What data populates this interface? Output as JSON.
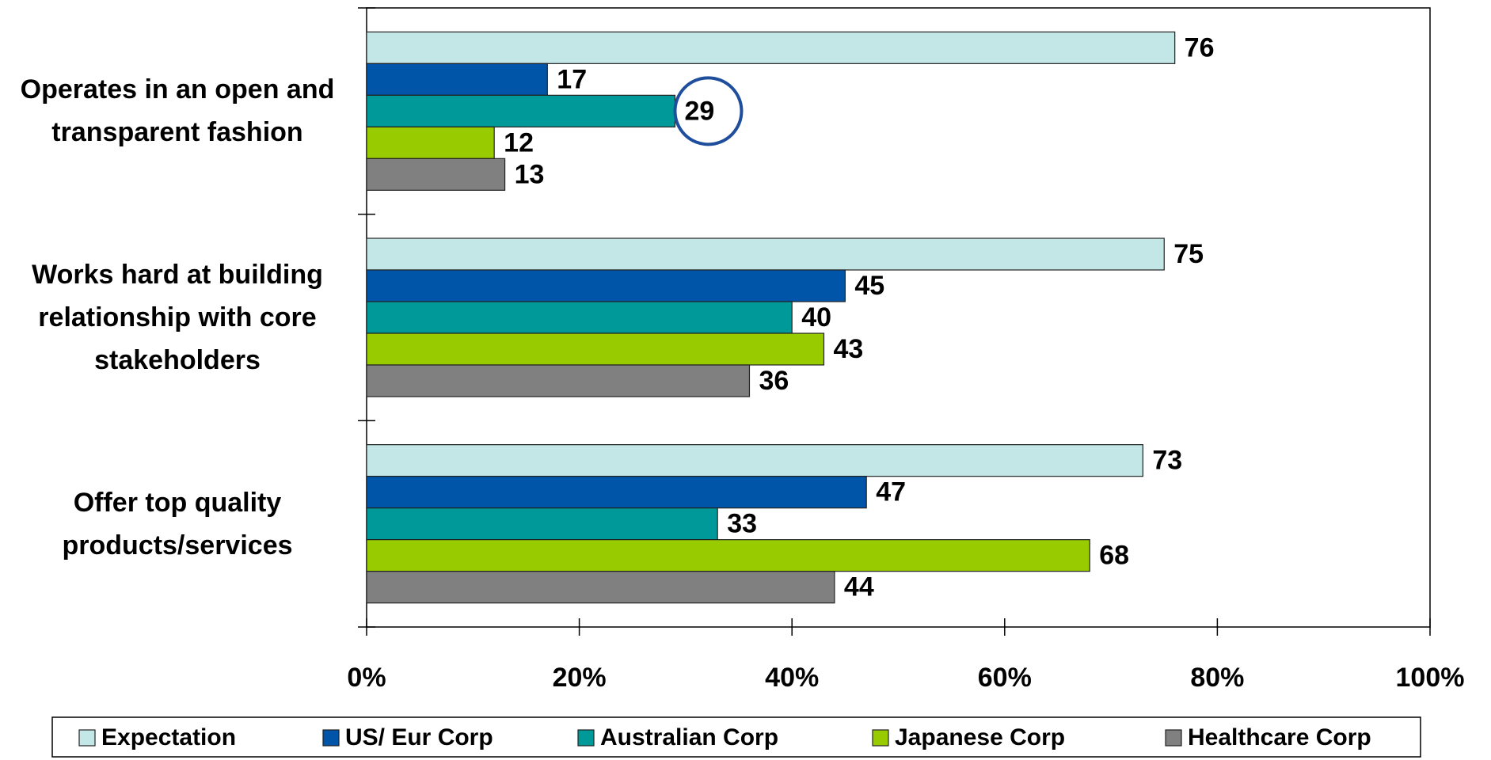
{
  "chart_data": {
    "type": "bar",
    "orientation": "horizontal",
    "categories": [
      "Operates in an open and transparent fashion",
      "Works hard at building relationship with core stakeholders",
      "Offer top quality products/services"
    ],
    "series": [
      {
        "name": "Expectation",
        "color": "#c3e6e6",
        "values": [
          76,
          75,
          73
        ]
      },
      {
        "name": "US/ Eur Corp",
        "color": "#0055a8",
        "values": [
          17,
          45,
          47
        ]
      },
      {
        "name": "Australian Corp",
        "color": "#009999",
        "values": [
          29,
          40,
          33
        ]
      },
      {
        "name": "Japanese Corp",
        "color": "#99cc00",
        "values": [
          12,
          43,
          68
        ]
      },
      {
        "name": "Healthcare Corp",
        "color": "#808080",
        "values": [
          13,
          36,
          44
        ]
      }
    ],
    "xlim": [
      0,
      100
    ],
    "xticks": [
      {
        "value": 0,
        "label": "0%"
      },
      {
        "value": 20,
        "label": "20%"
      },
      {
        "value": 40,
        "label": "40%"
      },
      {
        "value": 60,
        "label": "60%"
      },
      {
        "value": 80,
        "label": "80%"
      },
      {
        "value": 100,
        "label": "100%"
      }
    ],
    "legend": "bottom"
  }
}
